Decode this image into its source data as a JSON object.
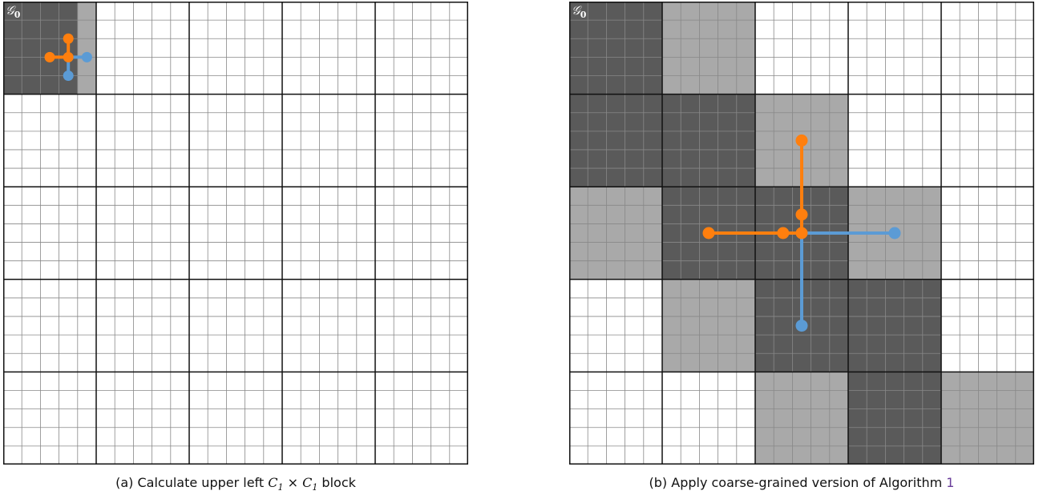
{
  "colors": {
    "dark": "#5a5a5a",
    "light": "#a9a9a9",
    "orange": "#ff7f0e",
    "blue": "#5b9bd5",
    "coarse_line": "#111111",
    "fine_line": "#888888"
  },
  "grid": {
    "coarse_blocks": 5,
    "fine_per_block": 5
  },
  "panels": [
    {
      "id": "a",
      "grid_label": "𝒢",
      "grid_label_sub": "0",
      "caption_prefix": "(a) Calculate upper left ",
      "caption_math_1": "C",
      "caption_math_1_sub": "1",
      "caption_times": " × ",
      "caption_math_2": "C",
      "caption_math_2_sub": "1",
      "caption_suffix": " block",
      "units": "fine",
      "cells": [
        {
          "row": 0,
          "col": 0,
          "shade": "dark"
        },
        {
          "row": 0,
          "col": 1,
          "shade": "dark"
        },
        {
          "row": 0,
          "col": 2,
          "shade": "dark"
        },
        {
          "row": 0,
          "col": 3,
          "shade": "dark"
        },
        {
          "row": 0,
          "col": 4,
          "shade": "light"
        },
        {
          "row": 1,
          "col": 0,
          "shade": "dark"
        },
        {
          "row": 1,
          "col": 1,
          "shade": "dark"
        },
        {
          "row": 1,
          "col": 2,
          "shade": "dark"
        },
        {
          "row": 1,
          "col": 3,
          "shade": "dark"
        },
        {
          "row": 1,
          "col": 4,
          "shade": "light"
        },
        {
          "row": 2,
          "col": 0,
          "shade": "dark"
        },
        {
          "row": 2,
          "col": 1,
          "shade": "dark"
        },
        {
          "row": 2,
          "col": 2,
          "shade": "dark"
        },
        {
          "row": 2,
          "col": 3,
          "shade": "dark"
        },
        {
          "row": 2,
          "col": 4,
          "shade": "light"
        },
        {
          "row": 3,
          "col": 0,
          "shade": "dark"
        },
        {
          "row": 3,
          "col": 1,
          "shade": "dark"
        },
        {
          "row": 3,
          "col": 2,
          "shade": "dark"
        },
        {
          "row": 3,
          "col": 3,
          "shade": "dark"
        },
        {
          "row": 3,
          "col": 4,
          "shade": "light"
        },
        {
          "row": 4,
          "col": 0,
          "shade": "dark"
        },
        {
          "row": 4,
          "col": 1,
          "shade": "dark"
        },
        {
          "row": 4,
          "col": 2,
          "shade": "dark"
        },
        {
          "row": 4,
          "col": 3,
          "shade": "dark"
        },
        {
          "row": 4,
          "col": 4,
          "shade": "light"
        }
      ],
      "center": {
        "row": 3,
        "col": 3.5
      },
      "arms": [
        {
          "color": "orange",
          "to": {
            "row": 2,
            "col": 3.5
          },
          "dots": [
            {
              "row": 2,
              "col": 3.5
            }
          ]
        },
        {
          "color": "orange",
          "to": {
            "row": 3,
            "col": 2.5
          },
          "dots": [
            {
              "row": 3,
              "col": 2.5
            }
          ]
        },
        {
          "color": "blue",
          "to": {
            "row": 3,
            "col": 4.5
          },
          "dots": [
            {
              "row": 3,
              "col": 4.5
            }
          ]
        },
        {
          "color": "blue",
          "to": {
            "row": 4,
            "col": 3.5
          },
          "dots": [
            {
              "row": 4,
              "col": 3.5
            }
          ]
        }
      ]
    },
    {
      "id": "b",
      "grid_label": "𝒢",
      "grid_label_sub": "0",
      "caption_prefix": "(b) Apply coarse-grained version of Algorithm ",
      "caption_ref": "1",
      "units": "coarse",
      "cells": [
        {
          "row": 0,
          "col": 0,
          "shade": "dark"
        },
        {
          "row": 0,
          "col": 1,
          "shade": "light"
        },
        {
          "row": 1,
          "col": 0,
          "shade": "dark"
        },
        {
          "row": 1,
          "col": 1,
          "shade": "dark"
        },
        {
          "row": 1,
          "col": 2,
          "shade": "light"
        },
        {
          "row": 2,
          "col": 0,
          "shade": "light"
        },
        {
          "row": 2,
          "col": 1,
          "shade": "dark"
        },
        {
          "row": 2,
          "col": 2,
          "shade": "dark"
        },
        {
          "row": 2,
          "col": 3,
          "shade": "light"
        },
        {
          "row": 3,
          "col": 1,
          "shade": "light"
        },
        {
          "row": 3,
          "col": 2,
          "shade": "dark"
        },
        {
          "row": 3,
          "col": 3,
          "shade": "dark"
        },
        {
          "row": 4,
          "col": 2,
          "shade": "light"
        },
        {
          "row": 4,
          "col": 3,
          "shade": "dark"
        },
        {
          "row": 4,
          "col": 4,
          "shade": "light"
        }
      ],
      "center": {
        "row": 2.5,
        "col": 2.5
      },
      "arms": [
        {
          "color": "orange",
          "to": {
            "row": 1.5,
            "col": 2.5
          },
          "dots": [
            {
              "row": 1.5,
              "col": 2.5
            },
            {
              "row": 2.3,
              "col": 2.5
            }
          ]
        },
        {
          "color": "orange",
          "to": {
            "row": 2.5,
            "col": 1.5
          },
          "dots": [
            {
              "row": 2.5,
              "col": 1.5
            },
            {
              "row": 2.5,
              "col": 2.3
            }
          ]
        },
        {
          "color": "blue",
          "to": {
            "row": 2.5,
            "col": 3.5
          },
          "dots": [
            {
              "row": 2.5,
              "col": 3.5
            }
          ]
        },
        {
          "color": "blue",
          "to": {
            "row": 3.5,
            "col": 2.5
          },
          "dots": [
            {
              "row": 3.5,
              "col": 2.5
            }
          ]
        }
      ]
    }
  ]
}
